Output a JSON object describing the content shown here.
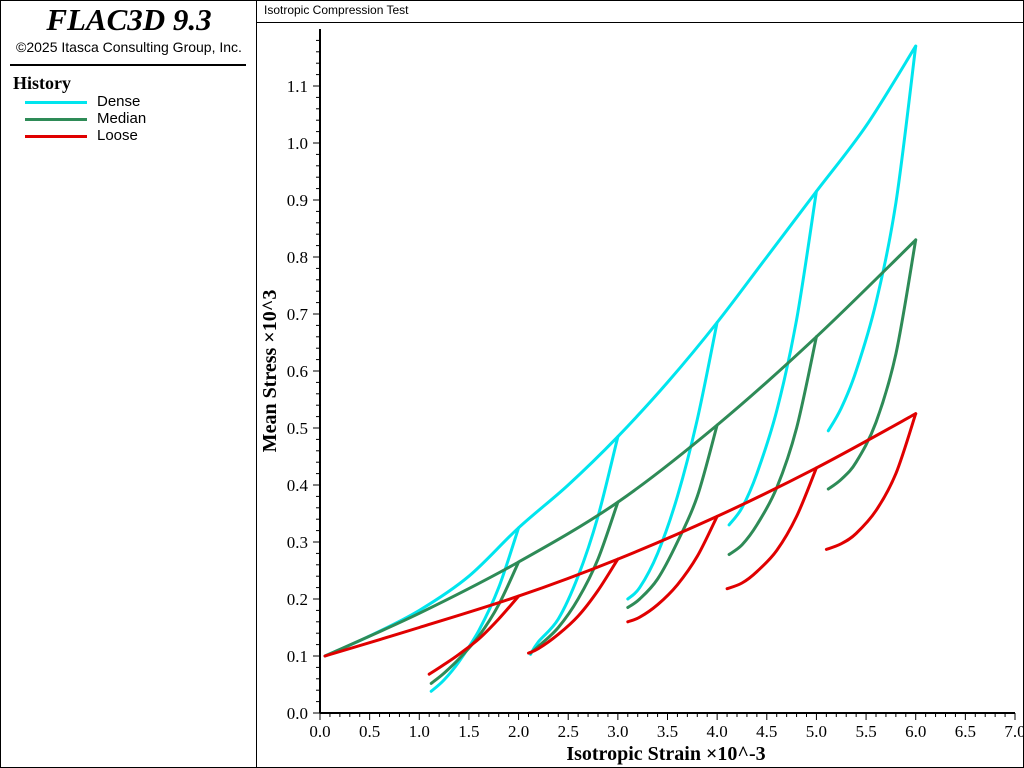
{
  "app": {
    "title": "FLAC3D 9.3",
    "copyright": "©2025 Itasca Consulting Group, Inc."
  },
  "legend": {
    "title": "History",
    "items": [
      {
        "label": "Dense",
        "color": "#00e5ee"
      },
      {
        "label": "Median",
        "color": "#2e8b57"
      },
      {
        "label": "Loose",
        "color": "#e00000"
      }
    ]
  },
  "chart_data": {
    "type": "line",
    "title": "Isotropic Compression Test",
    "xlabel": "Isotropic Strain ×10^-3",
    "ylabel": "Mean Stress  ×10^3",
    "xlim": [
      0,
      7.0
    ],
    "ylim": [
      0,
      1.2
    ],
    "x_ticks": [
      "0.0",
      "0.5",
      "1.0",
      "1.5",
      "2.0",
      "2.5",
      "3.0",
      "3.5",
      "4.0",
      "4.5",
      "5.0",
      "5.5",
      "6.0",
      "6.5",
      "7.0"
    ],
    "y_ticks": [
      "0.0",
      "0.1",
      "0.2",
      "0.3",
      "0.4",
      "0.5",
      "0.6",
      "0.7",
      "0.8",
      "0.9",
      "1.0",
      "1.1"
    ],
    "grid": false,
    "series": [
      {
        "name": "Dense",
        "color": "#00e5ee",
        "segments": [
          [
            [
              0.05,
              0.1
            ],
            [
              0.5,
              0.135
            ],
            [
              1.0,
              0.18
            ],
            [
              1.5,
              0.24
            ],
            [
              2.0,
              0.325
            ],
            [
              2.5,
              0.4
            ],
            [
              3.0,
              0.485
            ],
            [
              3.5,
              0.58
            ],
            [
              4.0,
              0.685
            ],
            [
              4.5,
              0.8
            ],
            [
              5.0,
              0.915
            ],
            [
              5.5,
              1.03
            ],
            [
              6.0,
              1.17
            ]
          ],
          [
            [
              2.0,
              0.325
            ],
            [
              1.8,
              0.22
            ],
            [
              1.6,
              0.145
            ],
            [
              1.4,
              0.09
            ],
            [
              1.25,
              0.058
            ],
            [
              1.12,
              0.038
            ]
          ],
          [
            [
              3.0,
              0.485
            ],
            [
              2.8,
              0.345
            ],
            [
              2.6,
              0.24
            ],
            [
              2.4,
              0.165
            ],
            [
              2.2,
              0.125
            ],
            [
              2.12,
              0.103
            ]
          ],
          [
            [
              4.0,
              0.685
            ],
            [
              3.8,
              0.515
            ],
            [
              3.6,
              0.38
            ],
            [
              3.4,
              0.28
            ],
            [
              3.22,
              0.22
            ],
            [
              3.1,
              0.2
            ]
          ],
          [
            [
              5.0,
              0.915
            ],
            [
              4.8,
              0.69
            ],
            [
              4.6,
              0.53
            ],
            [
              4.4,
              0.42
            ],
            [
              4.25,
              0.36
            ],
            [
              4.12,
              0.33
            ]
          ],
          [
            [
              6.0,
              1.17
            ],
            [
              5.8,
              0.895
            ],
            [
              5.6,
              0.72
            ],
            [
              5.4,
              0.6
            ],
            [
              5.25,
              0.535
            ],
            [
              5.12,
              0.495
            ]
          ]
        ]
      },
      {
        "name": "Median",
        "color": "#2e8b57",
        "segments": [
          [
            [
              0.05,
              0.1
            ],
            [
              1.0,
              0.175
            ],
            [
              2.0,
              0.265
            ],
            [
              3.0,
              0.37
            ],
            [
              4.0,
              0.505
            ],
            [
              5.0,
              0.66
            ],
            [
              6.0,
              0.83
            ]
          ],
          [
            [
              2.0,
              0.265
            ],
            [
              1.8,
              0.19
            ],
            [
              1.6,
              0.135
            ],
            [
              1.4,
              0.095
            ],
            [
              1.25,
              0.07
            ],
            [
              1.12,
              0.052
            ]
          ],
          [
            [
              3.0,
              0.37
            ],
            [
              2.8,
              0.27
            ],
            [
              2.6,
              0.2
            ],
            [
              2.4,
              0.15
            ],
            [
              2.22,
              0.12
            ],
            [
              2.12,
              0.105
            ]
          ],
          [
            [
              4.0,
              0.505
            ],
            [
              3.8,
              0.38
            ],
            [
              3.6,
              0.3
            ],
            [
              3.4,
              0.235
            ],
            [
              3.22,
              0.2
            ],
            [
              3.1,
              0.185
            ]
          ],
          [
            [
              5.0,
              0.66
            ],
            [
              4.8,
              0.5
            ],
            [
              4.6,
              0.395
            ],
            [
              4.4,
              0.33
            ],
            [
              4.25,
              0.295
            ],
            [
              4.12,
              0.278
            ]
          ],
          [
            [
              6.0,
              0.83
            ],
            [
              5.8,
              0.63
            ],
            [
              5.6,
              0.51
            ],
            [
              5.4,
              0.44
            ],
            [
              5.25,
              0.41
            ],
            [
              5.12,
              0.393
            ]
          ]
        ]
      },
      {
        "name": "Loose",
        "color": "#e00000",
        "segments": [
          [
            [
              0.05,
              0.1
            ],
            [
              1.0,
              0.15
            ],
            [
              2.0,
              0.205
            ],
            [
              3.0,
              0.27
            ],
            [
              4.0,
              0.345
            ],
            [
              5.0,
              0.43
            ],
            [
              6.0,
              0.525
            ]
          ],
          [
            [
              2.0,
              0.205
            ],
            [
              1.8,
              0.165
            ],
            [
              1.6,
              0.13
            ],
            [
              1.4,
              0.103
            ],
            [
              1.25,
              0.085
            ],
            [
              1.1,
              0.068
            ]
          ],
          [
            [
              3.0,
              0.27
            ],
            [
              2.8,
              0.215
            ],
            [
              2.6,
              0.17
            ],
            [
              2.4,
              0.138
            ],
            [
              2.2,
              0.113
            ],
            [
              2.1,
              0.105
            ]
          ],
          [
            [
              4.0,
              0.345
            ],
            [
              3.8,
              0.275
            ],
            [
              3.6,
              0.225
            ],
            [
              3.4,
              0.19
            ],
            [
              3.22,
              0.168
            ],
            [
              3.1,
              0.16
            ]
          ],
          [
            [
              5.0,
              0.43
            ],
            [
              4.8,
              0.345
            ],
            [
              4.6,
              0.285
            ],
            [
              4.4,
              0.248
            ],
            [
              4.25,
              0.228
            ],
            [
              4.1,
              0.218
            ]
          ],
          [
            [
              6.0,
              0.525
            ],
            [
              5.8,
              0.42
            ],
            [
              5.6,
              0.355
            ],
            [
              5.4,
              0.315
            ],
            [
              5.25,
              0.297
            ],
            [
              5.1,
              0.287
            ]
          ]
        ]
      }
    ]
  }
}
